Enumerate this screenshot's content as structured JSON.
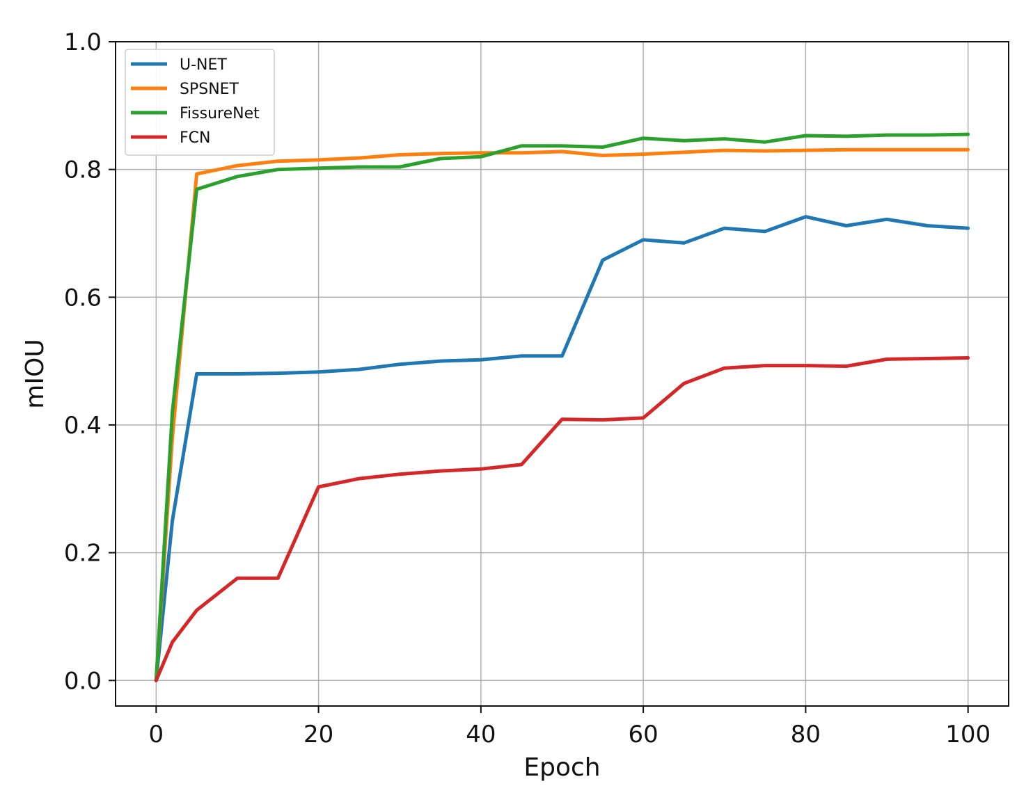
{
  "chart_data": {
    "type": "line",
    "title": "",
    "xlabel": "Epoch",
    "ylabel": "mIOU",
    "xlim": [
      -5,
      105
    ],
    "ylim": [
      -0.04,
      1.0
    ],
    "xticks": [
      0,
      20,
      40,
      60,
      80,
      100
    ],
    "xtick_labels": [
      "0",
      "20",
      "40",
      "60",
      "80",
      "100"
    ],
    "yticks": [
      0.0,
      0.2,
      0.4,
      0.6,
      0.8,
      1.0
    ],
    "ytick_labels": [
      "0.0",
      "0.2",
      "0.4",
      "0.6",
      "0.8",
      "1.0"
    ],
    "grid": true,
    "legend_position": "top-left",
    "x": [
      0,
      2,
      5,
      10,
      15,
      20,
      25,
      30,
      35,
      40,
      45,
      50,
      55,
      60,
      65,
      70,
      75,
      80,
      85,
      90,
      95,
      100
    ],
    "series": [
      {
        "name": "U-NET",
        "color": "#1f77b4",
        "values": [
          0.0,
          0.25,
          0.48,
          0.48,
          0.481,
          0.483,
          0.487,
          0.495,
          0.5,
          0.502,
          0.508,
          0.508,
          0.658,
          0.69,
          0.685,
          0.708,
          0.703,
          0.726,
          0.712,
          0.722,
          0.712,
          0.708
        ]
      },
      {
        "name": "SPSNET",
        "color": "#ff7f0e",
        "values": [
          0.0,
          0.38,
          0.793,
          0.806,
          0.813,
          0.815,
          0.818,
          0.823,
          0.825,
          0.826,
          0.826,
          0.828,
          0.822,
          0.824,
          0.827,
          0.83,
          0.829,
          0.83,
          0.831,
          0.831,
          0.831,
          0.831
        ]
      },
      {
        "name": "FissureNet",
        "color": "#2ca02c",
        "values": [
          0.0,
          0.42,
          0.769,
          0.789,
          0.8,
          0.802,
          0.804,
          0.804,
          0.817,
          0.82,
          0.837,
          0.837,
          0.835,
          0.849,
          0.845,
          0.848,
          0.843,
          0.853,
          0.852,
          0.854,
          0.854,
          0.855
        ]
      },
      {
        "name": "FCN",
        "color": "#d62728",
        "values": [
          0.0,
          0.06,
          0.11,
          0.16,
          0.16,
          0.303,
          0.316,
          0.323,
          0.328,
          0.331,
          0.338,
          0.409,
          0.408,
          0.411,
          0.465,
          0.489,
          0.493,
          0.493,
          0.492,
          0.503,
          0.504,
          0.505
        ]
      }
    ]
  }
}
